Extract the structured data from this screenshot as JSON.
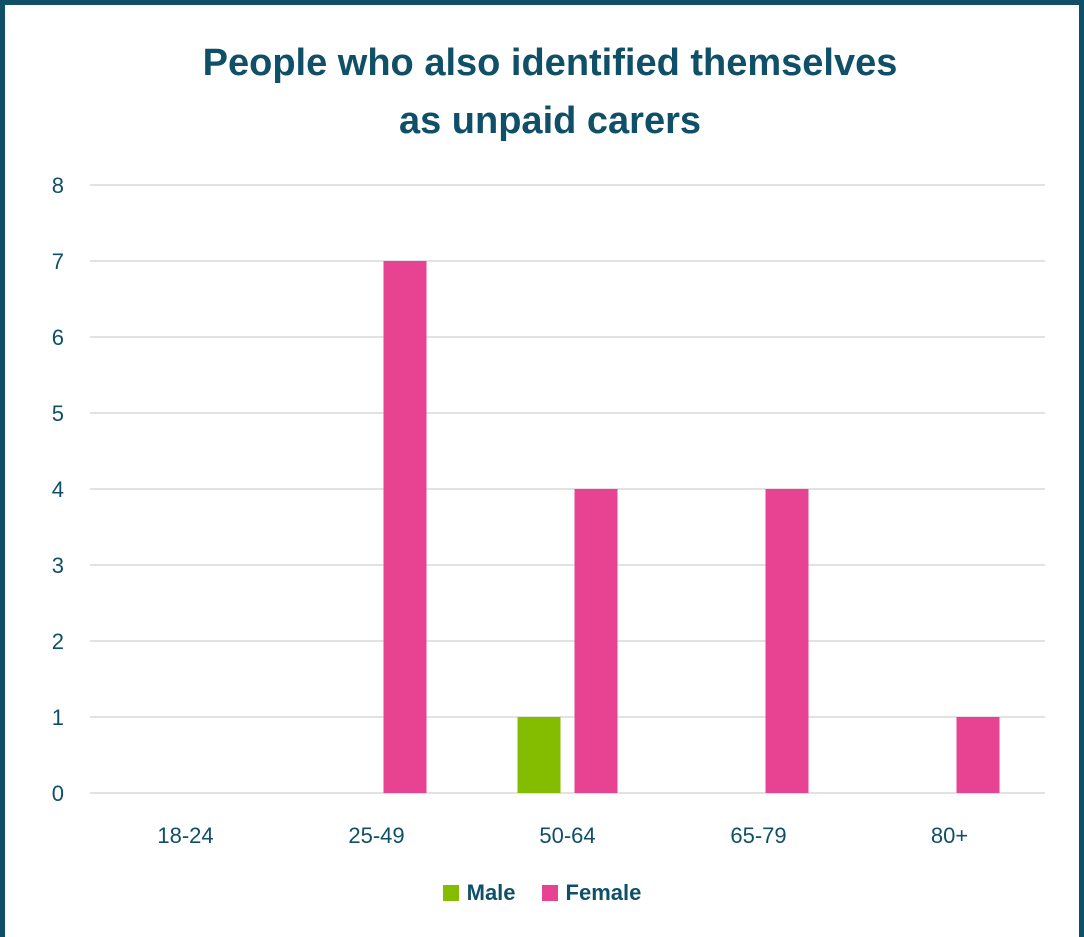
{
  "chart_data": {
    "type": "bar",
    "title_lines": [
      "People who also identified themselves",
      "as unpaid carers"
    ],
    "categories": [
      "18-24",
      "25-49",
      "50-64",
      "65-79",
      "80+"
    ],
    "series": [
      {
        "name": "Male",
        "color": "#84bd00",
        "values": [
          0,
          0,
          1,
          0,
          0
        ]
      },
      {
        "name": "Female",
        "color": "#e84393",
        "values": [
          0,
          7,
          4,
          4,
          1
        ]
      }
    ],
    "xlabel": "",
    "ylabel": "",
    "ylim": [
      0,
      8
    ],
    "yticks": [
      "0",
      "1",
      "2",
      "3",
      "4",
      "5",
      "6",
      "7",
      "8"
    ],
    "grid": true,
    "legend_position": "bottom"
  },
  "colors": {
    "frame": "#0f5068",
    "text": "#0f5068",
    "gridline": "#d9d9d9"
  }
}
